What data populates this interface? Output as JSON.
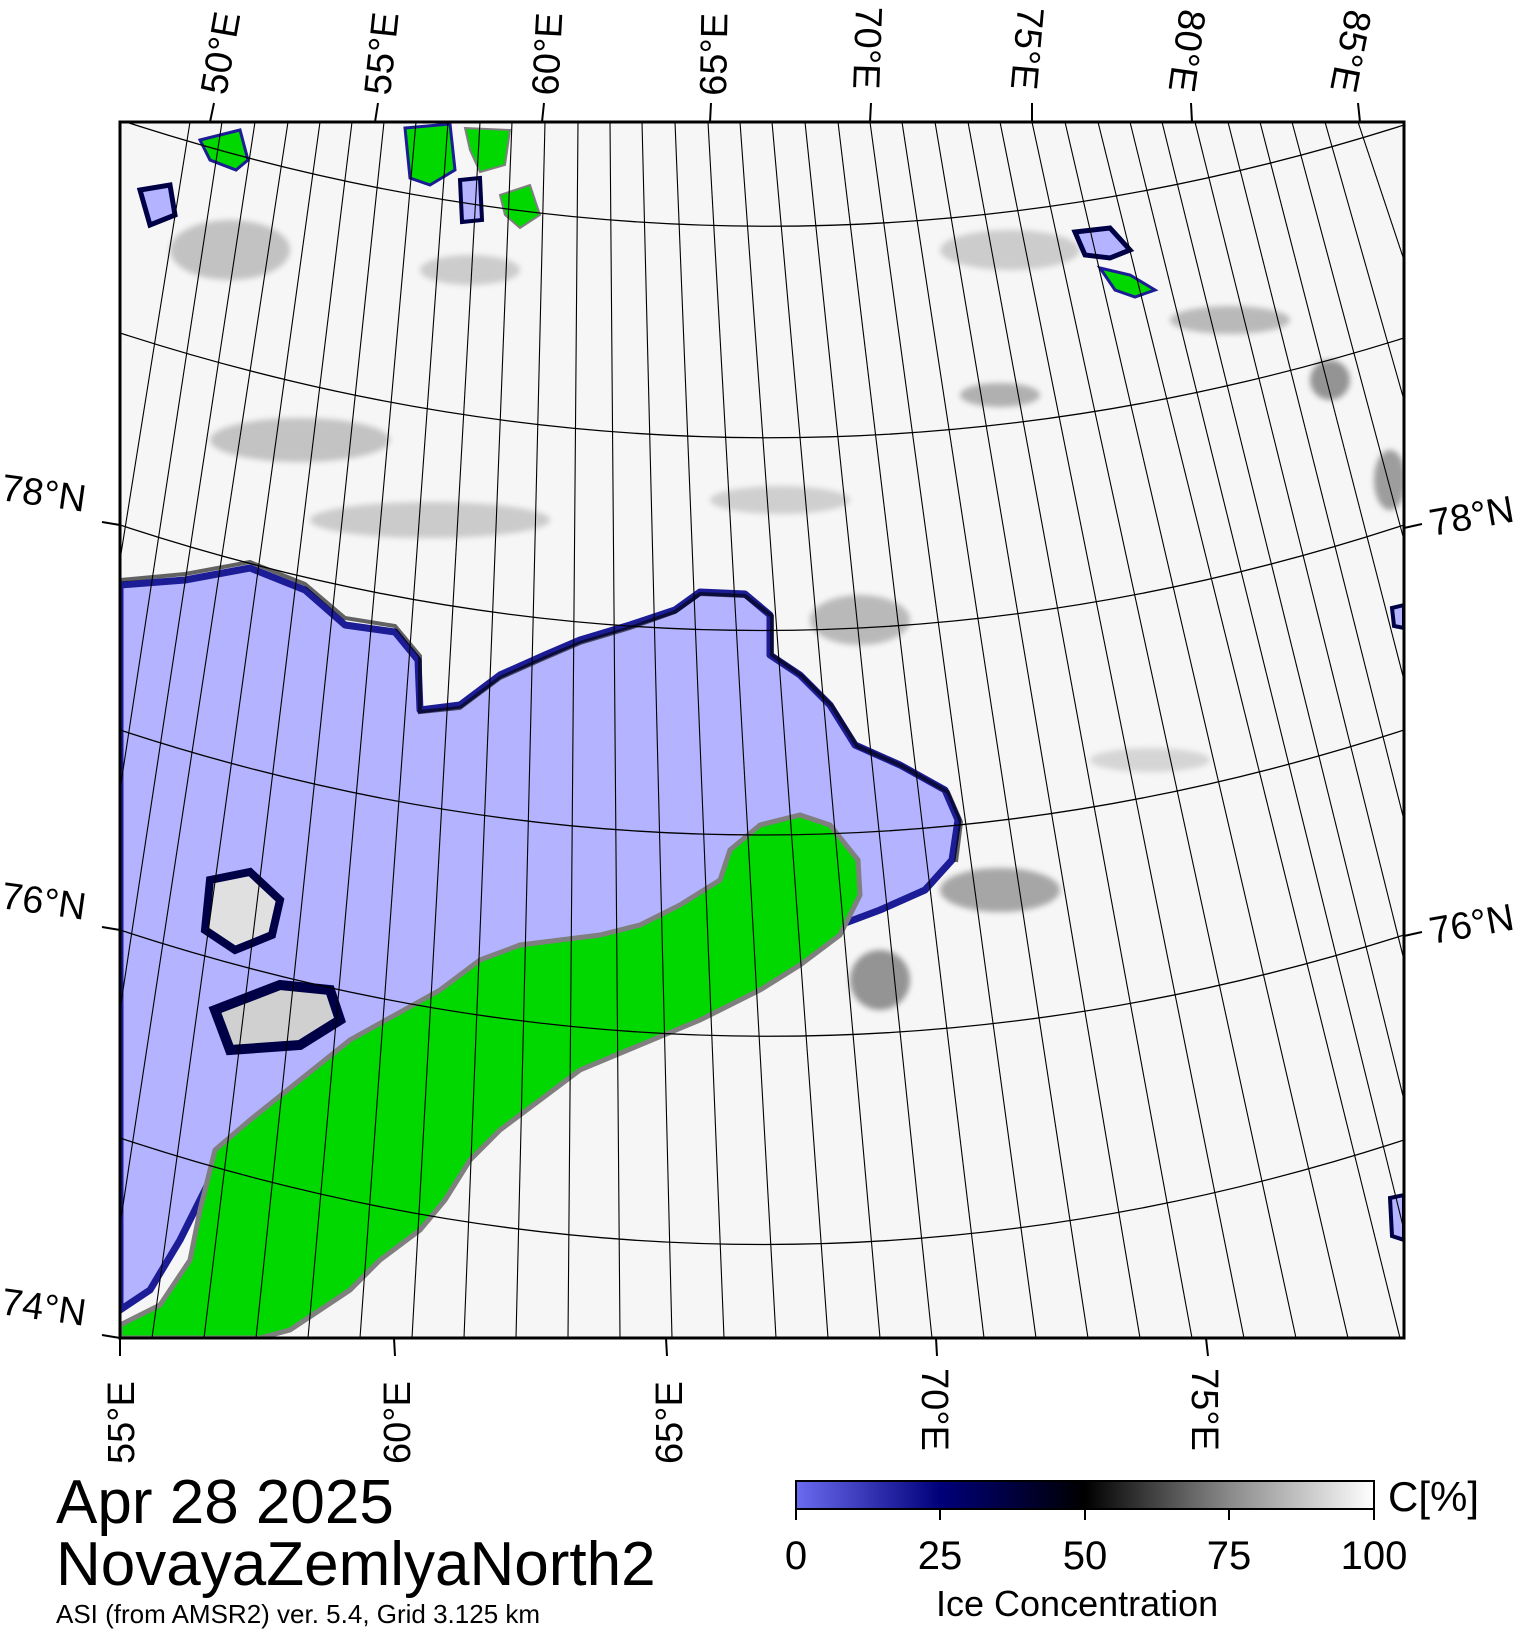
{
  "map": {
    "date": "Apr 28 2025",
    "region": "NovayaZemlyaNorth2",
    "product": "ASI (from AMSR2) ver. 5.4,  Grid 3.125 km",
    "top_lon_labels": [
      "50°E",
      "55°E",
      "60°E",
      "65°E",
      "70°E",
      "75°E",
      "80°E",
      "85°E"
    ],
    "bottom_lon_labels": [
      "55°E",
      "60°E",
      "65°E",
      "70°E",
      "75°E"
    ],
    "left_lat_labels": [
      "78°N",
      "76°N",
      "74°N"
    ],
    "right_lat_labels": [
      "78°N",
      "76°N"
    ],
    "colors": {
      "land": "#00d800",
      "land_edge": "#7f7f7f",
      "open_water": "#b3b3ff",
      "high_ice": "#ffffff",
      "graticule": "#000000"
    }
  },
  "colorbar": {
    "title": "Ice Concentration",
    "unit": "C[%]",
    "ticks": [
      "0",
      "25",
      "50",
      "75",
      "100"
    ],
    "stops": [
      "#6b6bf0",
      "#00007a",
      "#000000",
      "#8a8a8a",
      "#ffffff"
    ]
  }
}
